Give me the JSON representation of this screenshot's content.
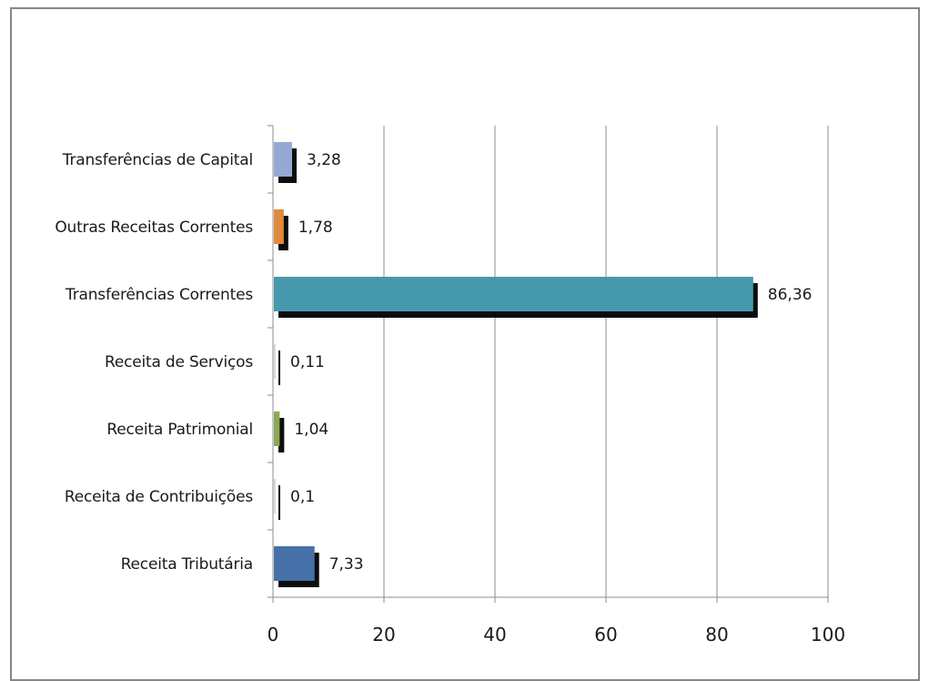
{
  "chart_data": {
    "type": "bar",
    "orientation": "horizontal",
    "categories": [
      "Transferências de Capital",
      "Outras Receitas Correntes",
      "Transferências Correntes",
      "Receita de Serviços",
      "Receita Patrimonial",
      "Receita de Contribuições",
      "Receita Tributária"
    ],
    "values": [
      3.28,
      1.78,
      86.36,
      0.11,
      1.04,
      0.1,
      7.33
    ],
    "value_labels": [
      "3,28",
      "1,78",
      "86,36",
      "0,11",
      "1,04",
      "0,1",
      "7,33"
    ],
    "colors": [
      "#95a8d4",
      "#e18a3c",
      "#4699ad",
      "#d9d9d9",
      "#8aa955",
      "#d9d9d9",
      "#4671a8"
    ],
    "xlim": [
      0,
      100
    ],
    "xticks": [
      0,
      20,
      40,
      60,
      80,
      100
    ],
    "grid": "vertical",
    "legend": "none",
    "title": "",
    "xlabel": "",
    "ylabel": ""
  }
}
